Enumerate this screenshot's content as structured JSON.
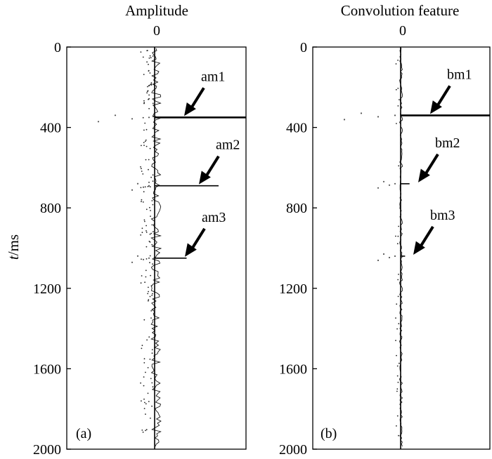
{
  "chart_data": [
    {
      "type": "line",
      "panel": "(a)",
      "title": "Amplitude",
      "xlabel": "",
      "ylabel": "t/ms",
      "ylabel_italic": "t",
      "ylabel_unit": "/ms",
      "ylim": [
        0,
        2000
      ],
      "yticks": [
        0,
        400,
        800,
        1200,
        1600,
        2000
      ],
      "xticks": [
        0
      ],
      "xlim": [
        -1,
        1
      ],
      "y_axis_reversed": true,
      "spikes": [
        {
          "t": 350,
          "amp": 1.0
        },
        {
          "t": 690,
          "amp": 0.7
        },
        {
          "t": 1050,
          "amp": 0.35
        }
      ],
      "annotations": [
        {
          "text": "am1",
          "t": 350
        },
        {
          "text": "am2",
          "t": 690
        },
        {
          "text": "am3",
          "t": 1050
        }
      ]
    },
    {
      "type": "line",
      "panel": "(b)",
      "title": "Convolution feature",
      "xlabel": "",
      "ylabel": "",
      "ylim": [
        0,
        2000
      ],
      "yticks": [
        0,
        400,
        800,
        1200,
        1600,
        2000
      ],
      "xticks": [
        0
      ],
      "xlim": [
        -1,
        1
      ],
      "y_axis_reversed": true,
      "spikes": [
        {
          "t": 340,
          "amp": 1.0
        },
        {
          "t": 680,
          "amp": 0.1
        },
        {
          "t": 1040,
          "amp": 0.05
        }
      ],
      "annotations": [
        {
          "text": "bm1",
          "t": 340
        },
        {
          "text": "bm2",
          "t": 680
        },
        {
          "text": "bm3",
          "t": 1040
        }
      ]
    }
  ]
}
